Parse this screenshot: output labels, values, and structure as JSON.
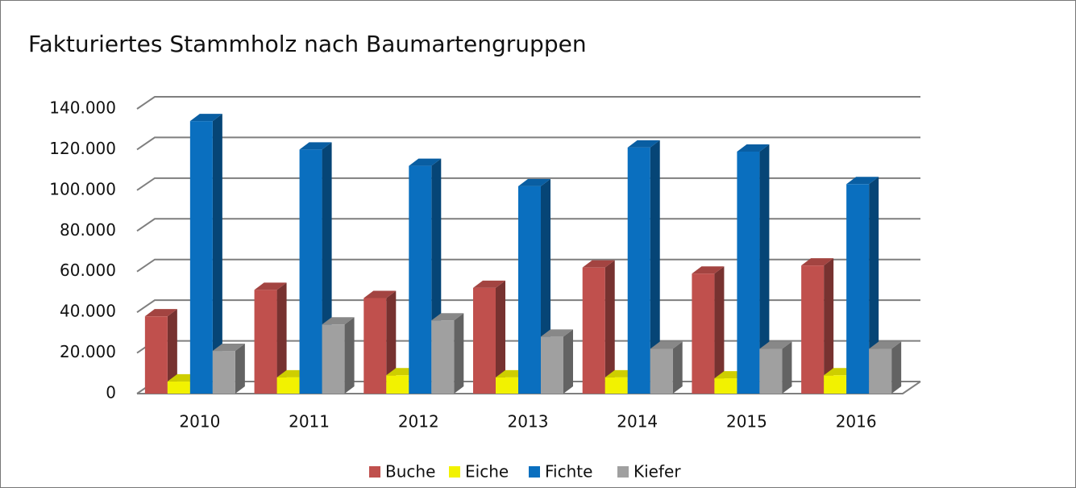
{
  "chart_data": {
    "type": "bar3d",
    "title": "Fakturiertes Stammholz nach Baumartengruppen",
    "categories": [
      "2010",
      "2011",
      "2012",
      "2013",
      "2014",
      "2015",
      "2016"
    ],
    "series": [
      {
        "name": "Buche",
        "color": "#c0504d",
        "values": [
          38000,
          51000,
          47000,
          52000,
          62000,
          59000,
          63000
        ]
      },
      {
        "name": "Eiche",
        "color": "#f2f200",
        "values": [
          6000,
          8000,
          9000,
          8000,
          8000,
          7500,
          9000
        ]
      },
      {
        "name": "Fichte",
        "color": "#0a6fbf",
        "values": [
          134000,
          120000,
          112000,
          102000,
          121000,
          119000,
          103000
        ]
      },
      {
        "name": "Kiefer",
        "color": "#a0a0a0",
        "values": [
          21000,
          34000,
          36000,
          28000,
          22000,
          22000,
          22000
        ]
      }
    ],
    "ylim": [
      0,
      140000
    ],
    "yticks": [
      0,
      {
        "value": 20000,
        "label": "20.000"
      },
      {
        "value": 40000,
        "label": "40.000"
      },
      {
        "value": 60000,
        "label": "60.000"
      },
      {
        "value": 80000,
        "label": "80.000"
      },
      {
        "value": 100000,
        "label": "100.000"
      },
      {
        "value": 120000,
        "label": "120.000"
      },
      {
        "value": 140000,
        "label": "140.000"
      }
    ],
    "grid": true,
    "legend": "bottom"
  }
}
